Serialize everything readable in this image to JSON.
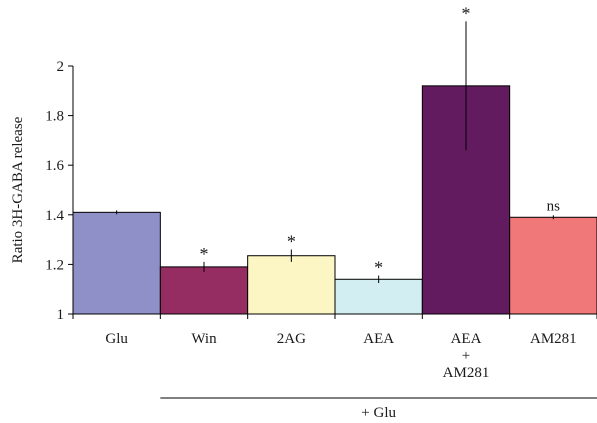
{
  "chart_data": {
    "type": "bar",
    "ylabel": "Ratio 3H-GABA release",
    "ylim": [
      1,
      2
    ],
    "yticks": [
      1,
      1.2,
      1.4,
      1.6,
      1.8,
      2
    ],
    "ytick_labels": [
      "1",
      "1.2",
      "1.4",
      "1.6",
      "1.8",
      "2"
    ],
    "categories": [
      [
        "Glu"
      ],
      [
        "Win"
      ],
      [
        "2AG"
      ],
      [
        "AEA"
      ],
      [
        "AEA",
        "+",
        "AM281"
      ],
      [
        "AM281"
      ]
    ],
    "values": [
      1.41,
      1.19,
      1.235,
      1.14,
      1.92,
      1.39
    ],
    "errors": [
      0.008,
      0.02,
      0.025,
      0.015,
      0.26,
      0.008
    ],
    "colors": [
      "#9090c8",
      "#962d62",
      "#fbf6c4",
      "#d2eef2",
      "#631b5f",
      "#f07878"
    ],
    "annotations": [
      "",
      "*",
      "*",
      "*",
      "*",
      "ns"
    ],
    "group_label": "+ Glu",
    "group_span": [
      1,
      5
    ],
    "grid": false
  }
}
